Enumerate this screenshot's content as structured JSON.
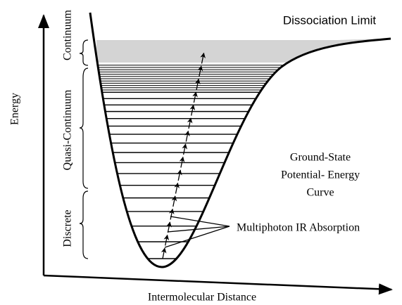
{
  "axes": {
    "y_label": "Energy",
    "x_label": "Intermolecular Distance"
  },
  "dissociation_label": "Dissociation Limit",
  "curve_label": [
    "Ground-State",
    "Potential- Energy",
    "Curve"
  ],
  "absorption_label": "Multiphoton IR Absorption",
  "regions": [
    "Continuum",
    "Quasi-Continuum",
    "Discrete"
  ]
}
